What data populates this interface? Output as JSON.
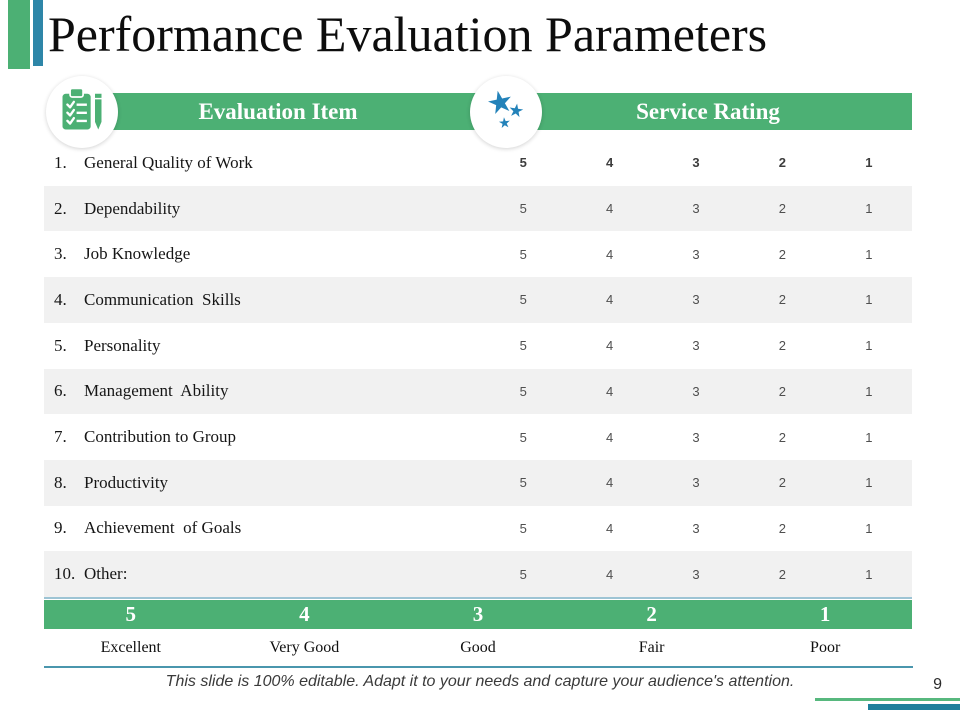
{
  "slide": {
    "title": "Performance Evaluation Parameters",
    "footnote": "This slide is 100% editable. Adapt it to your needs and capture your audience's attention.",
    "page_number": "9"
  },
  "table": {
    "columns": [
      {
        "label": "Evaluation Item",
        "icon": "clipboard-checklist-icon"
      },
      {
        "label": "Service Rating",
        "icon": "rating-stars-icon"
      }
    ],
    "rating_scale": [
      "5",
      "4",
      "3",
      "2",
      "1"
    ],
    "rows": [
      {
        "num": "1.",
        "label": "General Quality of Work"
      },
      {
        "num": "2.",
        "label": "Dependability"
      },
      {
        "num": "3.",
        "label": "Job Knowledge"
      },
      {
        "num": "4.",
        "label": "Communication  Skills"
      },
      {
        "num": "5.",
        "label": "Personality"
      },
      {
        "num": "6.",
        "label": "Management  Ability"
      },
      {
        "num": "7.",
        "label": "Contribution to Group"
      },
      {
        "num": "8.",
        "label": "Productivity"
      },
      {
        "num": "9.",
        "label": "Achievement  of Goals"
      },
      {
        "num": "10.",
        "label": "Other:"
      }
    ],
    "legend": [
      {
        "value": "5",
        "label": "Excellent"
      },
      {
        "value": "4",
        "label": "Very Good"
      },
      {
        "value": "3",
        "label": "Good"
      },
      {
        "value": "2",
        "label": "Fair"
      },
      {
        "value": "1",
        "label": "Poor"
      }
    ]
  },
  "colors": {
    "green": "#4CB074",
    "green_light": "#57B87E",
    "teal": "#2E86A8",
    "star_blue": "#2382B9",
    "row_alt": "#F1F1F1",
    "separator_light": "#9DC4D4",
    "separator_dark": "#4A96AD",
    "corner_teal": "#1E7F9C"
  }
}
